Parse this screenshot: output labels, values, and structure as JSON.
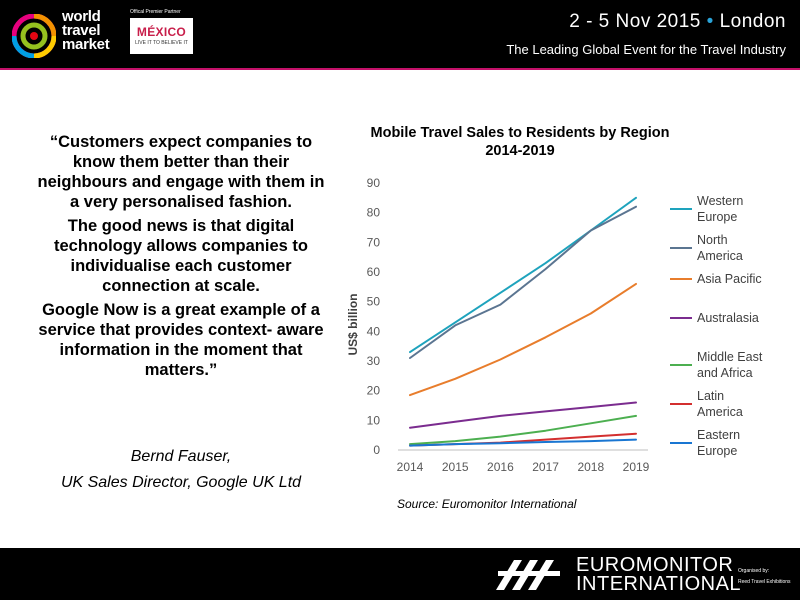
{
  "header": {
    "brand_lines": [
      "world",
      "travel",
      "market"
    ],
    "partner_caption": "Offical Premier Partner",
    "partner_name": "MÉXICO",
    "partner_tagline": "LIVE IT TO BELIEVE IT",
    "date_text": "2 - 5 Nov 2015",
    "separator": "•",
    "location": "London",
    "tagline": "The Leading Global Event for the Travel Industry",
    "accent_color": "#c4116a"
  },
  "quote": {
    "paragraph1": "“Customers expect companies to know them better than their neighbours and engage with them in a very personalised fashion.",
    "paragraph2": "The good news is that digital technology allows companies to individualise each customer connection at scale.",
    "paragraph3": "Google Now is a great example of a service that provides context- aware information in the moment that matters.”",
    "author": "Bernd Fauser,",
    "author_title": "UK Sales Director, Google UK Ltd"
  },
  "chart_data": {
    "type": "line",
    "title_line1": "Mobile Travel Sales to Residents by Region",
    "title_line2": "2014-2019",
    "ylabel": "US$ billion",
    "xlabel": "",
    "x": [
      "2014",
      "2015",
      "2016",
      "2017",
      "2018",
      "2019"
    ],
    "ylim": [
      0,
      90
    ],
    "yticks": [
      0,
      10,
      20,
      30,
      40,
      50,
      60,
      70,
      80,
      90
    ],
    "grid": false,
    "legend_position": "right",
    "series": [
      {
        "name_lines": [
          "Western",
          "Europe"
        ],
        "color": "#1ea3bd",
        "values": [
          33,
          43,
          53,
          63,
          74,
          85
        ]
      },
      {
        "name_lines": [
          "North",
          "America"
        ],
        "color": "#5b7591",
        "values": [
          31,
          42,
          49,
          61,
          74,
          82
        ]
      },
      {
        "name_lines": [
          "Asia Pacific"
        ],
        "color": "#e87d2c",
        "values": [
          18.5,
          24,
          30.5,
          38,
          46,
          56
        ]
      },
      {
        "name_lines": [
          "Australasia"
        ],
        "color": "#7b2c8f",
        "values": [
          7.5,
          9.5,
          11.5,
          13,
          14.5,
          16
        ]
      },
      {
        "name_lines": [
          "Middle East",
          "and Africa"
        ],
        "color": "#4caf50",
        "values": [
          2,
          3,
          4.5,
          6.5,
          9,
          11.5
        ]
      },
      {
        "name_lines": [
          "Latin",
          "America"
        ],
        "color": "#d32f2f",
        "values": [
          1.5,
          2,
          2.5,
          3.5,
          4.5,
          5.5
        ]
      },
      {
        "name_lines": [
          "Eastern",
          "Europe"
        ],
        "color": "#1976d2",
        "values": [
          1.5,
          2,
          2.3,
          2.7,
          3,
          3.5
        ]
      }
    ],
    "source": "Source: Euromonitor International"
  },
  "footer": {
    "brand_line1": "EUROMONITOR",
    "brand_line2": "INTERNATIONAL",
    "organised_by": "Organised by:",
    "organiser": "Reed Travel Exhibitions"
  }
}
